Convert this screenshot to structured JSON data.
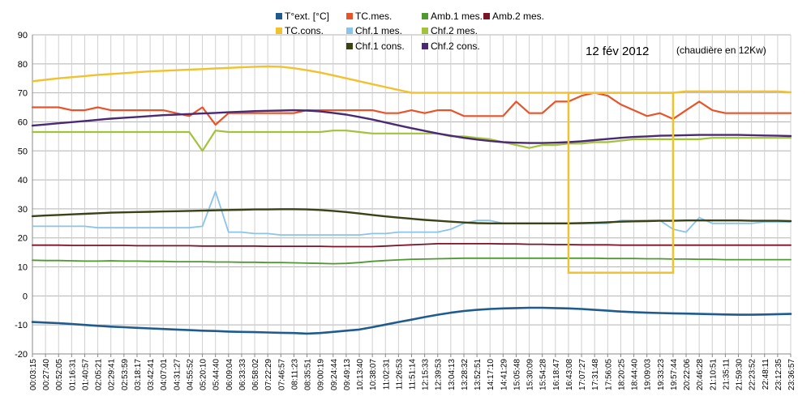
{
  "chart_data": {
    "type": "line",
    "title": "12 fév 2012",
    "annotation": "(chaudière en 12Kw)",
    "xlabel": "",
    "ylabel": "",
    "ylim": [
      -20,
      90
    ],
    "yticks": [
      -20,
      -10,
      0,
      10,
      20,
      30,
      40,
      50,
      60,
      70,
      80,
      90
    ],
    "grid": true,
    "legend_position": "top",
    "x": [
      "00:03:15",
      "00:27:40",
      "00:52:05",
      "01:16:31",
      "01:40:57",
      "02:05:21",
      "02:29:41",
      "02:53:59",
      "03:18:17",
      "03:42:41",
      "04:07:01",
      "04:31:27",
      "04:55:52",
      "05:20:10",
      "05:44:40",
      "06:09:04",
      "06:33:33",
      "06:58:02",
      "07:22:29",
      "07:46:57",
      "08:11:23",
      "08:35:51",
      "09:00:19",
      "09:24:44",
      "09:49:13",
      "10:13:40",
      "10:38:07",
      "11:02:31",
      "11:26:53",
      "11:51:14",
      "12:15:33",
      "12:39:53",
      "13:04:13",
      "13:28:32",
      "13:52:51",
      "14:17:10",
      "14:41:29",
      "15:05:48",
      "15:30:09",
      "15:54:28",
      "16:18:47",
      "16:43:08",
      "17:07:27",
      "17:31:48",
      "17:56:05",
      "18:20:25",
      "18:44:40",
      "19:09:03",
      "19:33:23",
      "19:57:44",
      "20:22:06",
      "20:46:28",
      "21:10:51",
      "21:35:11",
      "21:59:30",
      "22:23:52",
      "22:48:11",
      "23:12:35",
      "23:36:57"
    ],
    "series": [
      {
        "name": "T°ext. [°C]",
        "color": "#1f5b8f",
        "width": 2.6,
        "values": [
          -9,
          -9.2,
          -9.4,
          -9.7,
          -10,
          -10.3,
          -10.6,
          -10.8,
          -11,
          -11.2,
          -11.4,
          -11.6,
          -11.8,
          -12,
          -12.1,
          -12.3,
          -12.4,
          -12.5,
          -12.6,
          -12.7,
          -12.8,
          -13,
          -12.8,
          -12.4,
          -12,
          -11.6,
          -10.8,
          -9.9,
          -9,
          -8.2,
          -7.3,
          -6.5,
          -5.8,
          -5.2,
          -4.8,
          -4.5,
          -4.3,
          -4.2,
          -4.1,
          -4.1,
          -4.2,
          -4.3,
          -4.5,
          -4.8,
          -5.1,
          -5.4,
          -5.6,
          -5.8,
          -5.9,
          -6,
          -6.1,
          -6.2,
          -6.3,
          -6.4,
          -6.5,
          -6.5,
          -6.4,
          -6.3,
          -6.2
        ]
      },
      {
        "name": "TC.mes.",
        "color": "#e8542a",
        "width": 2.2,
        "values": [
          65,
          65,
          65,
          64,
          64,
          65,
          64,
          64,
          64,
          64,
          64,
          63,
          62,
          65,
          59,
          63,
          63,
          63,
          63,
          63,
          63,
          64,
          64,
          64,
          64,
          64,
          64,
          63,
          63,
          64,
          63,
          64,
          64,
          62,
          62,
          62,
          62,
          67,
          63,
          63,
          67,
          67,
          69,
          70,
          69,
          66,
          64,
          62,
          63,
          61,
          64,
          67,
          64,
          63,
          63,
          63,
          63,
          63,
          63
        ]
      },
      {
        "name": "Amb.1 mes.",
        "color": "#4e9a31",
        "width": 1.8,
        "values": [
          12.3,
          12.2,
          12.2,
          12.1,
          12,
          12,
          12.1,
          12,
          12,
          11.9,
          11.9,
          11.8,
          11.8,
          11.8,
          11.7,
          11.7,
          11.6,
          11.6,
          11.5,
          11.5,
          11.4,
          11.3,
          11.2,
          11.1,
          11.2,
          11.5,
          11.9,
          12.2,
          12.4,
          12.6,
          12.7,
          12.8,
          12.9,
          13,
          13,
          13,
          13,
          13,
          13,
          13,
          13,
          13,
          13,
          13,
          12.9,
          12.9,
          12.9,
          12.8,
          12.8,
          12.7,
          12.7,
          12.6,
          12.6,
          12.5,
          12.5,
          12.5,
          12.5,
          12.5,
          12.5
        ]
      },
      {
        "name": "Amb.2 mes.",
        "color": "#7a1426",
        "width": 1.8,
        "values": [
          17.5,
          17.5,
          17.5,
          17.4,
          17.4,
          17.4,
          17.4,
          17.4,
          17.3,
          17.3,
          17.3,
          17.3,
          17.3,
          17.2,
          17.2,
          17.2,
          17.2,
          17.2,
          17.1,
          17.1,
          17.1,
          17.1,
          17.1,
          17,
          17,
          17,
          17,
          17.2,
          17.4,
          17.6,
          17.8,
          18,
          18,
          18,
          18,
          18,
          17.9,
          17.9,
          17.8,
          17.8,
          17.7,
          17.7,
          17.6,
          17.6,
          17.6,
          17.5,
          17.5,
          17.5,
          17.5,
          17.5,
          17.5,
          17.5,
          17.5,
          17.5,
          17.5,
          17.5,
          17.5,
          17.5,
          17.5
        ]
      },
      {
        "name": "TC.cons.",
        "color": "#f2c12e",
        "width": 2.4,
        "values": [
          74,
          74.5,
          75,
          75.4,
          75.8,
          76.2,
          76.5,
          76.8,
          77.1,
          77.4,
          77.6,
          77.8,
          78,
          78.2,
          78.4,
          78.6,
          78.8,
          79,
          79.1,
          79,
          78.5,
          77.8,
          77,
          76,
          75,
          74,
          73,
          72,
          71,
          70,
          70,
          70,
          70,
          70,
          70,
          70,
          70,
          70,
          70,
          70,
          70,
          70,
          70,
          70,
          70,
          70,
          70,
          70,
          70,
          70,
          70.5,
          70.5,
          70.5,
          70.5,
          70.5,
          70.5,
          70.5,
          70.5,
          70.2
        ]
      },
      {
        "name": "Chf.1 mes.",
        "color": "#8ac4ea",
        "width": 1.8,
        "values": [
          24,
          24,
          24,
          24,
          24,
          23.5,
          23.5,
          23.5,
          23.5,
          23.5,
          23.5,
          23.5,
          23.5,
          24,
          36,
          22,
          22,
          21.5,
          21.5,
          21,
          21,
          21,
          21,
          21,
          21,
          21,
          21.5,
          21.5,
          22,
          22,
          22,
          22,
          23,
          25,
          26,
          26,
          25,
          25,
          25,
          25,
          25,
          25,
          25,
          25,
          25,
          26,
          26,
          26,
          26,
          23,
          22,
          27,
          25,
          25,
          25,
          25,
          25.5,
          25.5,
          25.5
        ]
      },
      {
        "name": "Chf.2 mes.",
        "color": "#a2c23a",
        "width": 2.2,
        "values": [
          56.5,
          56.5,
          56.5,
          56.5,
          56.5,
          56.5,
          56.5,
          56.5,
          56.5,
          56.5,
          56.5,
          56.5,
          56.5,
          50,
          57,
          56.5,
          56.5,
          56.5,
          56.5,
          56.5,
          56.5,
          56.5,
          56.5,
          57,
          57,
          56.5,
          56,
          56,
          56,
          56,
          56,
          56,
          55,
          55,
          54.5,
          54,
          53,
          52,
          51,
          52,
          52,
          52.5,
          52.5,
          53,
          53,
          53.5,
          54,
          54,
          54,
          54,
          54,
          54,
          54.5,
          54.5,
          54.5,
          54.5,
          54.5,
          54.5,
          54.5
        ]
      },
      {
        "name": "Chf.1 cons.",
        "color": "#3a4216",
        "width": 2.4,
        "values": [
          27.5,
          27.7,
          27.9,
          28.1,
          28.3,
          28.5,
          28.7,
          28.8,
          28.9,
          29,
          29.1,
          29.2,
          29.3,
          29.4,
          29.5,
          29.6,
          29.7,
          29.8,
          29.8,
          29.9,
          29.9,
          29.8,
          29.6,
          29.3,
          28.9,
          28.4,
          27.9,
          27.4,
          27,
          26.6,
          26.2,
          25.9,
          25.6,
          25.3,
          25.1,
          25,
          25,
          25,
          25,
          25,
          25,
          25,
          25.1,
          25.2,
          25.4,
          25.6,
          25.7,
          25.8,
          25.9,
          25.9,
          26,
          26,
          26,
          26,
          26,
          25.9,
          25.9,
          25.9,
          25.8
        ]
      },
      {
        "name": "Chf.2 cons.",
        "color": "#4a2a72",
        "width": 2.4,
        "values": [
          58.7,
          59.1,
          59.5,
          59.9,
          60.3,
          60.7,
          61.1,
          61.4,
          61.7,
          62,
          62.3,
          62.5,
          62.7,
          62.9,
          63.1,
          63.3,
          63.5,
          63.7,
          63.8,
          63.9,
          64,
          63.9,
          63.6,
          63.1,
          62.5,
          61.7,
          60.8,
          59.8,
          58.8,
          57.8,
          56.9,
          56,
          55.2,
          54.5,
          53.9,
          53.4,
          53,
          52.8,
          52.7,
          52.7,
          52.8,
          53,
          53.3,
          53.7,
          54.1,
          54.5,
          54.8,
          55,
          55.2,
          55.3,
          55.4,
          55.5,
          55.5,
          55.5,
          55.5,
          55.4,
          55.3,
          55.2,
          55.1
        ]
      }
    ],
    "annotation_box": {
      "color": "#f2c12e",
      "x_start": "16:43:08",
      "x_end": "19:57:44",
      "y_bottom": 8,
      "y_top": 70
    }
  }
}
